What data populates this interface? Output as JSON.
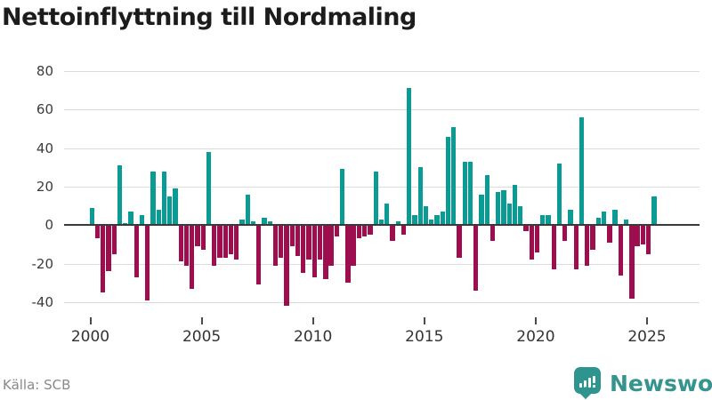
{
  "title": "Nettoinflyttning till Nordmaling",
  "source": "Källa: SCB",
  "branding": {
    "name": "Newsworthy",
    "icon": "newsworthy-speech-bubble-bar-chart-icon",
    "color": "#2e958e"
  },
  "colors": {
    "positive_bar": "#0a9b95",
    "negative_bar": "#9e0d4d",
    "zero_line": "#3a3a3a",
    "gridline": "#dcdcdc",
    "title_text": "#1c1c1c",
    "axis_text": "#3c3c3c",
    "source_text": "#8a8a8a"
  },
  "chart_data": {
    "type": "bar",
    "title": "Nettoinflyttning till Nordmaling",
    "xlabel": "",
    "ylabel": "",
    "grid": "horizontal",
    "legend": "none",
    "y_ticks": [
      80,
      60,
      40,
      20,
      0,
      -20,
      -40
    ],
    "ylim": [
      -50,
      82
    ],
    "x_tick_labels": [
      "2000",
      "2005",
      "2010",
      "2015",
      "2020",
      "2025"
    ],
    "frequency": "quarterly",
    "start_period": "2000 Q1",
    "end_period": "2025 Q2",
    "values": [
      9,
      -7,
      -35,
      -24,
      -15,
      31,
      1,
      7,
      -27,
      5,
      -39,
      28,
      8,
      28,
      15,
      19,
      -19,
      -21,
      -33,
      -11,
      -13,
      38,
      -21,
      -17,
      -17,
      -15,
      -18,
      3,
      16,
      2,
      -31,
      4,
      2,
      -21,
      -17,
      -42,
      -11,
      -16,
      -25,
      -18,
      -27,
      -18,
      -28,
      -21,
      -6,
      29,
      -30,
      -21,
      -7,
      -6,
      -5,
      28,
      3,
      11,
      -8,
      2,
      -5,
      71,
      5,
      30,
      10,
      3,
      5,
      7,
      46,
      51,
      -17,
      33,
      33,
      -34,
      16,
      26,
      -8,
      17,
      18,
      11,
      21,
      10,
      -3,
      -18,
      -14,
      5,
      5,
      -23,
      32,
      -8,
      8,
      -23,
      56,
      -21,
      -13,
      4,
      7,
      -9,
      8,
      -26,
      3,
      -38,
      -11,
      -10,
      -15,
      15
    ]
  }
}
